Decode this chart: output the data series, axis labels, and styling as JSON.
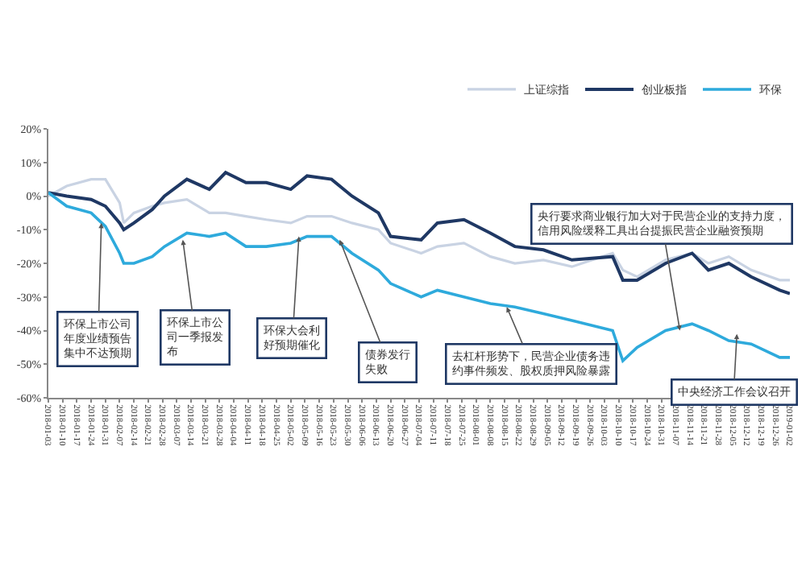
{
  "chart_data": {
    "type": "line",
    "x": [
      "2018-01-03",
      "2018-01-12",
      "2018-01-24",
      "2018-01-31",
      "2018-02-07",
      "2018-02-09",
      "2018-02-14",
      "2018-02-23",
      "2018-03-01",
      "2018-03-12",
      "2018-03-23",
      "2018-03-31",
      "2018-04-10",
      "2018-04-20",
      "2018-05-02",
      "2018-05-10",
      "2018-05-22",
      "2018-06-01",
      "2018-06-14",
      "2018-06-20",
      "2018-07-05",
      "2018-07-13",
      "2018-07-26",
      "2018-08-08",
      "2018-08-20",
      "2018-09-03",
      "2018-09-17",
      "2018-10-07",
      "2018-10-12",
      "2018-10-19",
      "2018-11-02",
      "2018-11-15",
      "2018-11-23",
      "2018-12-03",
      "2018-12-14",
      "2018-12-28",
      "2019-01-02"
    ],
    "series": [
      {
        "name": "上证综指",
        "color": "#c9d3e3",
        "values": [
          0,
          3,
          5,
          5,
          -2,
          -8,
          -5,
          -3,
          -2,
          -1,
          -5,
          -5,
          -6,
          -7,
          -8,
          -6,
          -6,
          -8,
          -10,
          -14,
          -17,
          -15,
          -14,
          -18,
          -20,
          -19,
          -21,
          -17,
          -22,
          -24,
          -19,
          -17,
          -20,
          -18,
          -22,
          -25,
          -25
        ]
      },
      {
        "name": "创业板指",
        "color": "#1f3864",
        "values": [
          1,
          0,
          -1,
          -3,
          -8,
          -10,
          -8,
          -4,
          0,
          5,
          2,
          7,
          4,
          4,
          2,
          6,
          5,
          0,
          -5,
          -12,
          -13,
          -8,
          -7,
          -11,
          -15,
          -16,
          -19,
          -18,
          -25,
          -25,
          -20,
          -17,
          -22,
          -20,
          -24,
          -28,
          -29
        ]
      },
      {
        "name": "环保",
        "color": "#2eaadc",
        "values": [
          1,
          -3,
          -5,
          -9,
          -17,
          -20,
          -20,
          -18,
          -15,
          -11,
          -12,
          -11,
          -15,
          -15,
          -14,
          -12,
          -12,
          -17,
          -22,
          -26,
          -30,
          -28,
          -30,
          -32,
          -33,
          -35,
          -37,
          -40,
          -49,
          -45,
          -40,
          -38,
          -40,
          -43,
          -44,
          -48,
          -48
        ]
      }
    ],
    "ylim": [
      -60,
      20
    ],
    "yticks": [
      {
        "value": 20,
        "label": "20%"
      },
      {
        "value": 10,
        "label": "10%"
      },
      {
        "value": 0,
        "label": "0%"
      },
      {
        "value": -10,
        "label": "-10%"
      },
      {
        "value": -20,
        "label": "-20%"
      },
      {
        "value": -30,
        "label": "-30%"
      },
      {
        "value": -40,
        "label": "-40%"
      },
      {
        "value": -50,
        "label": "-50%"
      },
      {
        "value": -60,
        "label": "-60%"
      }
    ],
    "xlim": [
      "2018-01-03",
      "2019-01-02"
    ],
    "xticks": [
      "2018-01-03",
      "2018-01-10",
      "2018-01-17",
      "2018-01-24",
      "2018-01-31",
      "2018-02-07",
      "2018-02-14",
      "2018-02-21",
      "2018-02-28",
      "2018-03-07",
      "2018-03-14",
      "2018-03-21",
      "2018-03-28",
      "2018-04-04",
      "2018-04-11",
      "2018-04-18",
      "2018-04-25",
      "2018-05-02",
      "2018-05-09",
      "2018-05-16",
      "2018-05-23",
      "2018-05-30",
      "2018-06-06",
      "2018-06-13",
      "2018-06-20",
      "2018-06-27",
      "2018-07-04",
      "2018-07-11",
      "2018-07-18",
      "2018-07-25",
      "2018-08-01",
      "2018-08-08",
      "2018-08-15",
      "2018-08-22",
      "2018-08-29",
      "2018-09-05",
      "2018-09-12",
      "2018-09-19",
      "2018-09-26",
      "2018-10-03",
      "2018-10-10",
      "2018-10-17",
      "2018-10-24",
      "2018-10-31",
      "2018-11-07",
      "2018-11-14",
      "2018-11-21",
      "2018-11-28",
      "2018-12-05",
      "2018-12-12",
      "2018-12-19",
      "2018-12-26",
      "2019-01-02"
    ],
    "annotations": [
      {
        "text": "环保上市公司年度业绩预告集中不达预期",
        "x": "2018-01-29",
        "y": -8
      },
      {
        "text": "环保上市公司一季报发布",
        "x": "2018-03-10",
        "y": -13
      },
      {
        "text": "环保大会利好预期催化",
        "x": "2018-05-06",
        "y": -12
      },
      {
        "text": "债券发行失败",
        "x": "2018-05-26",
        "y": -13
      },
      {
        "text": "去杠杆形势下，民营企业债务违约事件频发、股权质押风险暴露",
        "x": "2018-08-16",
        "y": -33
      },
      {
        "text": "央行要求商业银行加大对于民营企业的支持力度，信用风险缓释工具出台提振民营企业融资预期",
        "x": "2018-11-09",
        "y": -40
      },
      {
        "text": "中央经济工作会议召开",
        "x": "2018-12-07",
        "y": -41
      }
    ],
    "legend": "top right",
    "grid": false
  }
}
